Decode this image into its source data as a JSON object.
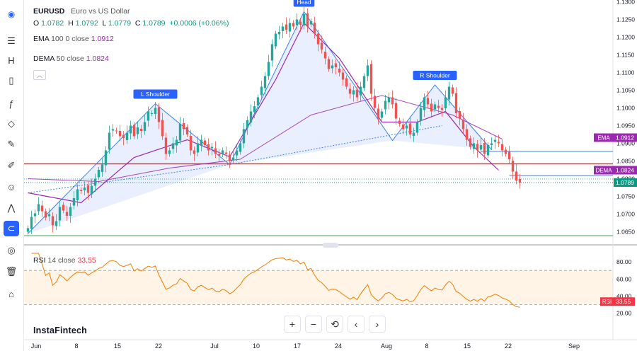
{
  "header": {
    "symbol": "EURUSD",
    "description": "Euro vs US Dollar",
    "o_label": "O",
    "o_value": "1.0782",
    "h_label": "H",
    "h_value": "1.0792",
    "l_label": "L",
    "l_value": "1.0779",
    "c_label": "C",
    "c_value": "1.0789",
    "change": "+0.0006 (+0.06%)"
  },
  "indicators": {
    "ema": {
      "name": "EMA",
      "params": "100  0  close",
      "value": "1.0912"
    },
    "dema": {
      "name": "DEMA",
      "params": "50  close",
      "value": "1.0824"
    },
    "rsi": {
      "name": "RSI",
      "params": "14  close",
      "value": "33.55"
    }
  },
  "brand": "InstaFintech",
  "zoom_controls": [
    "+",
    "−",
    "⟲",
    "‹",
    "›"
  ],
  "toolbar": [
    "menu-icon",
    "timeframe-icon",
    "candles-icon",
    "function-icon",
    "node-icon",
    "brush-icon",
    "pen-icon",
    "emoji-icon",
    "pattern-icon",
    "magnet-icon",
    "eye-icon",
    "trash-icon",
    "camera-icon"
  ],
  "chart_data": {
    "type": "candlestick",
    "price_axis": {
      "range": [
        1.0625,
        1.1305
      ],
      "ticks": [
        "1.1300",
        "1.1250",
        "1.1200",
        "1.1150",
        "1.1100",
        "1.1050",
        "1.1000",
        "1.0950",
        "1.0900",
        "1.0850",
        "1.0800",
        "1.0750",
        "1.0700",
        "1.0650"
      ]
    },
    "rsi_axis": {
      "range": [
        18,
        95
      ],
      "ticks": [
        "80.00",
        "60.00",
        "40.00",
        "20.00"
      ],
      "upper_band": 70,
      "lower_band": 30
    },
    "x_ticks": [
      "Jun",
      "8",
      "15",
      "22",
      "Jul",
      "10",
      "17",
      "24",
      "Aug",
      "8",
      "15",
      "22",
      "Sep"
    ],
    "pattern": {
      "name": "head-and-shoulders",
      "labels": [
        "L Shoulder",
        "Head",
        "R Shoulder"
      ],
      "points": [
        [
          0,
          1.0645
        ],
        [
          36,
          1.1012
        ],
        [
          57,
          1.084
        ],
        [
          78,
          1.1272
        ],
        [
          103,
          1.0908
        ],
        [
          115,
          1.1065
        ],
        [
          131,
          1.0882
        ]
      ],
      "neckline": [
        [
          0,
          1.076
        ],
        [
          57,
          1.084
        ],
        [
          117,
          1.095
        ]
      ]
    },
    "levels": {
      "resistance": 1.0842,
      "support": 1.0639,
      "price_line": 1.0789,
      "range_box_top": 1.0877,
      "range_box_bottom": 1.0809
    },
    "price_labels": [
      {
        "name": "EMA",
        "value": "1.0912",
        "color": "#9c27b0"
      },
      {
        "name": "DEMA",
        "value": "1.0824",
        "color": "#9c27b0"
      },
      {
        "name": "",
        "value": "1.0789",
        "color": "#089981"
      }
    ],
    "rsi_label": {
      "name": "RSI",
      "value": "33.55",
      "color": "#f23645"
    },
    "ema_series": [
      [
        0,
        1.08
      ],
      [
        20,
        1.0792
      ],
      [
        40,
        1.083
      ],
      [
        60,
        1.0855
      ],
      [
        80,
        1.098
      ],
      [
        100,
        1.1035
      ],
      [
        120,
        1.098
      ],
      [
        134,
        1.0912
      ]
    ],
    "dema_series": [
      [
        0,
        1.076
      ],
      [
        15,
        1.0732
      ],
      [
        30,
        1.086
      ],
      [
        45,
        1.091
      ],
      [
        57,
        1.0862
      ],
      [
        70,
        1.108
      ],
      [
        78,
        1.124
      ],
      [
        88,
        1.114
      ],
      [
        100,
        1.096
      ],
      [
        110,
        1.096
      ],
      [
        118,
        1.099
      ],
      [
        126,
        1.089
      ],
      [
        133,
        1.0824
      ]
    ],
    "closes": [
      1.066,
      1.0692,
      1.0702,
      1.0728,
      1.0708,
      1.069,
      1.07,
      1.0668,
      1.068,
      1.072,
      1.071,
      1.0695,
      1.072,
      1.0745,
      1.077,
      1.0765,
      1.0775,
      1.076,
      1.078,
      1.08,
      1.0825,
      1.084,
      1.088,
      1.093,
      1.094,
      1.0935,
      1.092,
      1.0915,
      1.093,
      1.095,
      1.092,
      1.0945,
      1.0935,
      1.096,
      1.099,
      1.0985,
      1.1,
      1.096,
      1.092,
      1.087,
      1.088,
      1.09,
      1.091,
      1.0955,
      1.094,
      1.0925,
      1.088,
      1.087,
      1.09,
      1.091,
      1.0895,
      1.088,
      1.089,
      1.087,
      1.0865,
      1.088,
      1.087,
      1.085,
      1.086,
      1.088,
      1.09,
      1.094,
      1.0965,
      1.099,
      1.1005,
      1.103,
      1.106,
      1.109,
      1.113,
      1.118,
      1.121,
      1.1215,
      1.123,
      1.122,
      1.124,
      1.123,
      1.125,
      1.1235,
      1.1265,
      1.123,
      1.1245,
      1.121,
      1.118,
      1.1165,
      1.114,
      1.111,
      1.112,
      1.1115,
      1.11,
      1.108,
      1.106,
      1.104,
      1.105,
      1.103,
      1.106,
      1.109,
      1.112,
      1.104,
      1.1,
      1.097,
      1.099,
      1.102,
      1.103,
      1.101,
      1.097,
      1.0955,
      1.094,
      1.095,
      1.0925,
      1.093,
      1.096,
      1.1,
      1.103,
      1.101,
      1.099,
      1.101,
      1.1,
      1.0995,
      1.103,
      1.106,
      1.104,
      1.0985,
      1.097,
      1.094,
      1.091,
      1.089,
      1.09,
      1.088,
      1.0895,
      1.087,
      1.0895,
      1.09,
      1.091,
      1.09,
      1.088,
      1.087,
      1.0855,
      1.082,
      1.0795,
      1.0789
    ]
  }
}
